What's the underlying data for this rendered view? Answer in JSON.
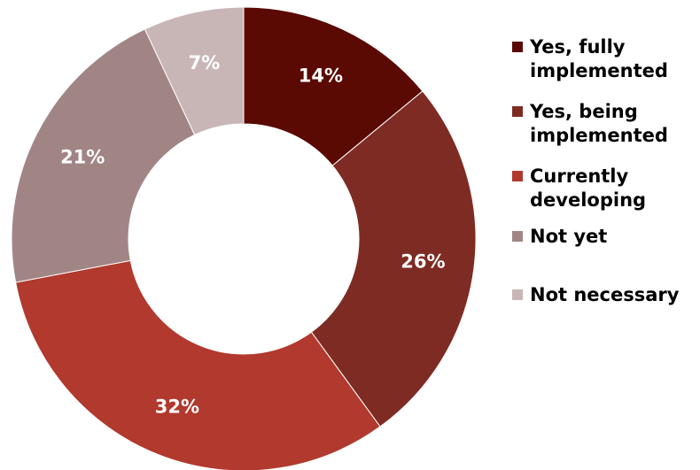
{
  "chart_data": {
    "type": "pie",
    "donut": true,
    "categories": [
      "Yes, fully implemented",
      "Yes, being implemented",
      "Currently developing",
      "Not yet",
      "Not necessary"
    ],
    "values": [
      14,
      26,
      32,
      21,
      7
    ],
    "labels": [
      "14%",
      "26%",
      "32%",
      "21%",
      "7%"
    ],
    "colors": [
      "#5a0a03",
      "#7e2b23",
      "#b1392d",
      "#a18584",
      "#c8b6b6"
    ],
    "legend": "right",
    "start_angle": "12 o'clock",
    "direction": "clockwise"
  }
}
